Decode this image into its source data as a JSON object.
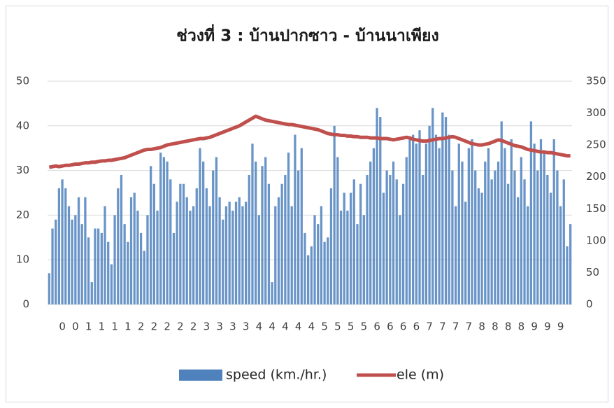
{
  "chart_data": {
    "type": "bar_line",
    "title": "ช่วงที่ 3 : บ้านปากซาว - บ้านนาเพียง",
    "categories": [
      null,
      null,
      null,
      null,
      "0",
      null,
      null,
      null,
      "0",
      null,
      null,
      null,
      "1",
      null,
      null,
      null,
      "1",
      null,
      null,
      null,
      "1",
      null,
      null,
      null,
      "1",
      null,
      null,
      null,
      "2",
      null,
      null,
      null,
      "2",
      null,
      null,
      null,
      "2",
      null,
      null,
      null,
      "2",
      null,
      null,
      null,
      "2",
      null,
      null,
      null,
      "3",
      null,
      null,
      null,
      "3",
      null,
      null,
      null,
      "3",
      null,
      null,
      null,
      "3",
      null,
      null,
      null,
      "4",
      null,
      null,
      null,
      "4",
      null,
      null,
      null,
      "4",
      null,
      null,
      null,
      "4",
      null,
      null,
      null,
      "4",
      null,
      null,
      null,
      "5",
      null,
      null,
      null,
      "5",
      null,
      null,
      null,
      "5",
      null,
      null,
      null,
      "5",
      null,
      null,
      null,
      "6",
      null,
      null,
      null,
      "6",
      null,
      null,
      null,
      "6",
      null,
      null,
      null,
      "6",
      null,
      null,
      null,
      "7",
      null,
      null,
      null,
      "7",
      null,
      null,
      null,
      "7",
      null,
      null,
      null,
      "7",
      null,
      null,
      null,
      "8",
      null,
      null,
      null,
      "8",
      null,
      null,
      null,
      "8",
      null,
      null,
      null,
      "8",
      null,
      null,
      null,
      "9",
      null,
      null,
      null,
      "9",
      null,
      null,
      null,
      "9",
      null,
      null,
      null
    ],
    "series": [
      {
        "name": "speed (km./hr.)",
        "color": "#4f81bd",
        "axis": "y",
        "values": [
          7,
          17,
          19,
          26,
          28,
          26,
          22,
          19,
          20,
          24,
          18,
          24,
          15,
          5,
          17,
          17,
          16,
          22,
          14,
          9,
          20,
          26,
          29,
          18,
          14,
          24,
          25,
          21,
          16,
          12,
          20,
          31,
          27,
          21,
          34,
          33,
          32,
          28,
          16,
          23,
          27,
          27,
          24,
          21,
          22,
          26,
          35,
          32,
          26,
          22,
          30,
          33,
          24,
          19,
          22,
          23,
          21,
          23,
          24,
          22,
          23,
          29,
          36,
          32,
          20,
          31,
          33,
          27,
          5,
          22,
          24,
          27,
          29,
          34,
          22,
          38,
          30,
          35,
          16,
          11,
          13,
          20,
          18,
          22,
          14,
          15,
          26,
          40,
          33,
          21,
          25,
          21,
          25,
          28,
          18,
          27,
          20,
          29,
          32,
          35,
          44,
          42,
          25,
          30,
          29,
          32,
          28,
          20,
          27,
          33,
          37,
          38,
          36,
          39,
          29,
          36,
          40,
          44,
          38,
          35,
          43,
          42,
          38,
          30,
          22,
          36,
          32,
          23,
          35,
          37,
          30,
          26,
          25,
          32,
          35,
          28,
          30,
          32,
          41,
          35,
          27,
          37,
          30,
          24,
          33,
          28,
          22,
          41,
          36,
          30,
          37,
          34,
          29,
          25,
          37,
          30,
          22,
          28,
          13,
          18
        ]
      },
      {
        "name": "ele (m)",
        "color": "#c0504d",
        "axis": "y2",
        "values": [
          215,
          216,
          217,
          216,
          217,
          218,
          218,
          219,
          220,
          220,
          221,
          222,
          222,
          223,
          223,
          224,
          225,
          225,
          226,
          226,
          227,
          228,
          229,
          230,
          232,
          234,
          236,
          238,
          240,
          242,
          243,
          243,
          244,
          245,
          246,
          248,
          250,
          251,
          252,
          253,
          254,
          255,
          256,
          257,
          258,
          259,
          260,
          260,
          261,
          262,
          264,
          266,
          268,
          270,
          272,
          274,
          276,
          278,
          280,
          283,
          286,
          289,
          292,
          295,
          293,
          291,
          289,
          288,
          287,
          286,
          285,
          284,
          283,
          282,
          282,
          281,
          280,
          279,
          278,
          277,
          276,
          275,
          274,
          272,
          270,
          268,
          267,
          266,
          266,
          265,
          265,
          264,
          264,
          263,
          263,
          262,
          262,
          262,
          261,
          261,
          261,
          260,
          260,
          260,
          259,
          258,
          259,
          260,
          261,
          262,
          261,
          259,
          258,
          257,
          256,
          256,
          257,
          258,
          259,
          260,
          260,
          261,
          262,
          263,
          262,
          260,
          258,
          256,
          254,
          252,
          251,
          250,
          250,
          251,
          252,
          254,
          256,
          258,
          257,
          255,
          253,
          251,
          249,
          248,
          247,
          245,
          243,
          242,
          241,
          240,
          239,
          239,
          238,
          238,
          237,
          236,
          235,
          234,
          233,
          233
        ]
      }
    ],
    "ylim": [
      0,
      50
    ],
    "yticks": [
      0,
      10,
      20,
      30,
      40,
      50
    ],
    "y2lim": [
      0,
      350
    ],
    "y2ticks": [
      0,
      50,
      100,
      150,
      200,
      250,
      300,
      350
    ],
    "grid": true,
    "legend": "bottom"
  }
}
